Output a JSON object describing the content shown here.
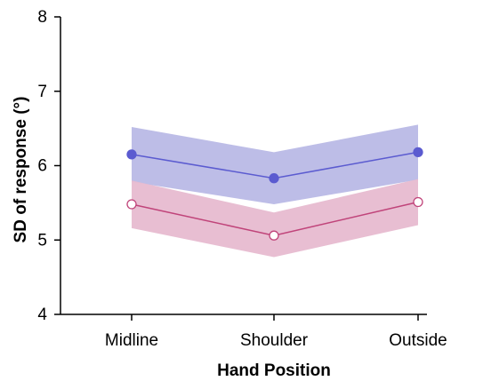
{
  "chart_data": {
    "type": "line",
    "title": "",
    "xlabel": "Hand Position",
    "ylabel": "SD of response (°)",
    "categories": [
      "Midline",
      "Shoulder",
      "Outside"
    ],
    "ylim": [
      4,
      8
    ],
    "yticks": [
      "4",
      "5",
      "6",
      "7",
      "8"
    ],
    "grid": false,
    "legend": "none",
    "series": [
      {
        "values": [
          6.15,
          5.83,
          6.18
        ],
        "band_lower": [
          5.78,
          5.48,
          5.81
        ],
        "band_upper": [
          6.52,
          6.18,
          6.55
        ],
        "marker": "filled-circle",
        "line_color": "#5b5bd0",
        "band_color": "#b9b9e6"
      },
      {
        "values": [
          5.48,
          5.06,
          5.51
        ],
        "band_lower": [
          5.16,
          4.77,
          5.2
        ],
        "band_upper": [
          5.8,
          5.37,
          5.82
        ],
        "marker": "open-circle",
        "line_color": "#c0447a",
        "band_color": "#e7bad0"
      }
    ]
  }
}
